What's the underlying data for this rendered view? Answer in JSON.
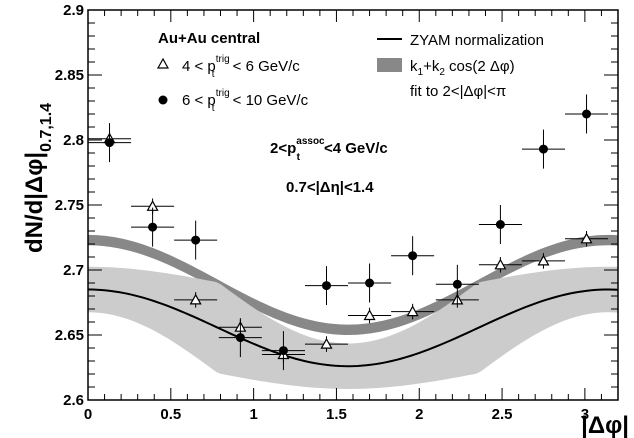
{
  "chart_data": {
    "type": "scatter",
    "x_axis": {
      "label": "|Δφ|",
      "range": [
        0,
        3.2
      ],
      "major_ticks": [
        0,
        0.5,
        1,
        1.5,
        2,
        2.5,
        3
      ],
      "tick_labels": [
        "0",
        "0.5",
        "1",
        "1.5",
        "2",
        "2.5",
        "3"
      ]
    },
    "y_axis": {
      "label_main": "dN/d|Δφ|",
      "label_sub": "0.7,1.4",
      "range": [
        2.6,
        2.9
      ],
      "major_ticks": [
        2.6,
        2.65,
        2.7,
        2.75,
        2.8,
        2.85,
        2.9
      ],
      "tick_labels": [
        "2.6",
        "2.65",
        "2.7",
        "2.75",
        "2.8",
        "2.85",
        "2.9"
      ]
    },
    "legend_left": {
      "title": "Au+Au central",
      "entries": [
        {
          "prefix": "4 < p",
          "sup": "trig",
          "sub": "t",
          "suffix": " < 6 GeV/c",
          "marker": "open-triangle"
        },
        {
          "prefix": "6 < p",
          "sup": "trig",
          "sub": "t",
          "suffix": " < 10 GeV/c",
          "marker": "filled-circle"
        }
      ]
    },
    "legend_right": {
      "line_label": "ZYAM normalization",
      "band_label_parts": [
        "k",
        "1",
        "+k",
        "2",
        " cos(2 Δφ)"
      ],
      "fit_text": "fit to 2<|Δφ|<π"
    },
    "annotation_assoc": {
      "prefix": "2<p",
      "sup": "assoc",
      "sub": "t",
      "suffix": "<4 GeV/c"
    },
    "annotation_eta": "0.7<|Δη|<1.4",
    "series": [
      {
        "name": "4 < p_t^trig < 6 GeV/c",
        "marker": "open-triangle",
        "points": [
          {
            "x": 0.13,
            "y": 2.801,
            "ex": 0.13,
            "ey": 0.006
          },
          {
            "x": 0.39,
            "y": 2.749,
            "ex": 0.13,
            "ey": 0.006
          },
          {
            "x": 0.65,
            "y": 2.677,
            "ex": 0.13,
            "ey": 0.006
          },
          {
            "x": 0.92,
            "y": 2.656,
            "ex": 0.13,
            "ey": 0.006
          },
          {
            "x": 1.18,
            "y": 2.635,
            "ex": 0.13,
            "ey": 0.006
          },
          {
            "x": 1.44,
            "y": 2.643,
            "ex": 0.13,
            "ey": 0.006
          },
          {
            "x": 1.7,
            "y": 2.665,
            "ex": 0.13,
            "ey": 0.006
          },
          {
            "x": 1.96,
            "y": 2.668,
            "ex": 0.13,
            "ey": 0.006
          },
          {
            "x": 2.23,
            "y": 2.677,
            "ex": 0.13,
            "ey": 0.006
          },
          {
            "x": 2.49,
            "y": 2.704,
            "ex": 0.13,
            "ey": 0.006
          },
          {
            "x": 2.75,
            "y": 2.707,
            "ex": 0.13,
            "ey": 0.006
          },
          {
            "x": 3.01,
            "y": 2.724,
            "ex": 0.13,
            "ey": 0.006
          }
        ]
      },
      {
        "name": "6 < p_t^trig < 10 GeV/c",
        "marker": "filled-circle",
        "points": [
          {
            "x": 0.13,
            "y": 2.798,
            "ex": 0.13,
            "ey": 0.015
          },
          {
            "x": 0.39,
            "y": 2.733,
            "ex": 0.13,
            "ey": 0.015
          },
          {
            "x": 0.65,
            "y": 2.723,
            "ex": 0.13,
            "ey": 0.015
          },
          {
            "x": 0.92,
            "y": 2.648,
            "ex": 0.13,
            "ey": 0.015
          },
          {
            "x": 1.18,
            "y": 2.638,
            "ex": 0.13,
            "ey": 0.015
          },
          {
            "x": 1.44,
            "y": 2.688,
            "ex": 0.13,
            "ey": 0.015
          },
          {
            "x": 1.7,
            "y": 2.69,
            "ex": 0.13,
            "ey": 0.015
          },
          {
            "x": 1.96,
            "y": 2.711,
            "ex": 0.13,
            "ey": 0.015
          },
          {
            "x": 2.23,
            "y": 2.689,
            "ex": 0.13,
            "ey": 0.015
          },
          {
            "x": 2.49,
            "y": 2.735,
            "ex": 0.13,
            "ey": 0.015
          },
          {
            "x": 2.75,
            "y": 2.793,
            "ex": 0.13,
            "ey": 0.015
          },
          {
            "x": 3.01,
            "y": 2.82,
            "ex": 0.13,
            "ey": 0.015
          }
        ]
      }
    ],
    "bands": [
      {
        "name": "k1+k2 cos(2 Δφ)",
        "k1": 2.6885,
        "k2": 0.0345,
        "half_width": 0.004,
        "color": "#888888"
      },
      {
        "name": "ZYAM normalization uncertainty",
        "k1": 2.6555,
        "k2": 0.0295,
        "half_width_min": 0.0175,
        "half_width_max": 0.035,
        "color": "#cccccc"
      }
    ],
    "line": {
      "name": "ZYAM normalization",
      "k1": 2.6555,
      "k2": 0.0295,
      "color": "#000000"
    }
  }
}
